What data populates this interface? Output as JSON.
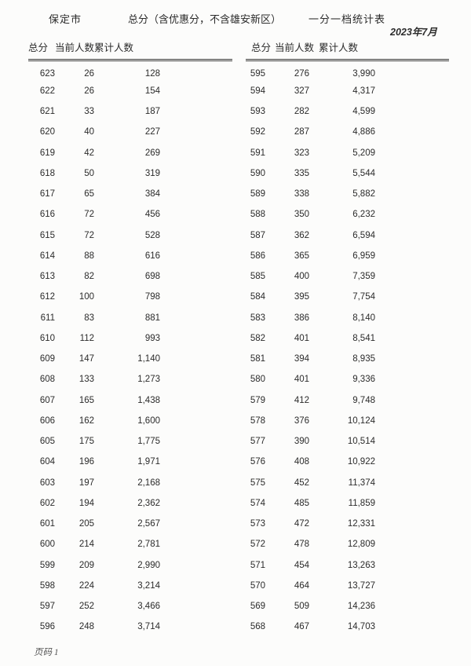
{
  "page": {
    "region": "保定市",
    "scope_note": "总分（含优惠分，不含雄安新区）",
    "table_title": "一分一档统计表",
    "date": "2023年7月",
    "page_label": "页码 1"
  },
  "columns": [
    "总分",
    "当前人数",
    "累计人数"
  ],
  "tables": {
    "left": {
      "rows": [
        [
          "623",
          "26",
          "128"
        ],
        [
          "622",
          "26",
          "154"
        ],
        [
          "621",
          "33",
          "187"
        ],
        [
          "620",
          "40",
          "227"
        ],
        [
          "619",
          "42",
          "269"
        ],
        [
          "618",
          "50",
          "319"
        ],
        [
          "617",
          "65",
          "384"
        ],
        [
          "616",
          "72",
          "456"
        ],
        [
          "615",
          "72",
          "528"
        ],
        [
          "614",
          "88",
          "616"
        ],
        [
          "613",
          "82",
          "698"
        ],
        [
          "612",
          "100",
          "798"
        ],
        [
          "611",
          "83",
          "881"
        ],
        [
          "610",
          "112",
          "993"
        ],
        [
          "609",
          "147",
          "1,140"
        ],
        [
          "608",
          "133",
          "1,273"
        ],
        [
          "607",
          "165",
          "1,438"
        ],
        [
          "606",
          "162",
          "1,600"
        ],
        [
          "605",
          "175",
          "1,775"
        ],
        [
          "604",
          "196",
          "1,971"
        ],
        [
          "603",
          "197",
          "2,168"
        ],
        [
          "602",
          "194",
          "2,362"
        ],
        [
          "601",
          "205",
          "2,567"
        ],
        [
          "600",
          "214",
          "2,781"
        ],
        [
          "599",
          "209",
          "2,990"
        ],
        [
          "598",
          "224",
          "3,214"
        ],
        [
          "597",
          "252",
          "3,466"
        ],
        [
          "596",
          "248",
          "3,714"
        ]
      ]
    },
    "right": {
      "rows": [
        [
          "595",
          "276",
          "3,990"
        ],
        [
          "594",
          "327",
          "4,317"
        ],
        [
          "593",
          "282",
          "4,599"
        ],
        [
          "592",
          "287",
          "4,886"
        ],
        [
          "591",
          "323",
          "5,209"
        ],
        [
          "590",
          "335",
          "5,544"
        ],
        [
          "589",
          "338",
          "5,882"
        ],
        [
          "588",
          "350",
          "6,232"
        ],
        [
          "587",
          "362",
          "6,594"
        ],
        [
          "586",
          "365",
          "6,959"
        ],
        [
          "585",
          "400",
          "7,359"
        ],
        [
          "584",
          "395",
          "7,754"
        ],
        [
          "583",
          "386",
          "8,140"
        ],
        [
          "582",
          "401",
          "8,541"
        ],
        [
          "581",
          "394",
          "8,935"
        ],
        [
          "580",
          "401",
          "9,336"
        ],
        [
          "579",
          "412",
          "9,748"
        ],
        [
          "578",
          "376",
          "10,124"
        ],
        [
          "577",
          "390",
          "10,514"
        ],
        [
          "576",
          "408",
          "10,922"
        ],
        [
          "575",
          "452",
          "11,374"
        ],
        [
          "574",
          "485",
          "11,859"
        ],
        [
          "573",
          "472",
          "12,331"
        ],
        [
          "572",
          "478",
          "12,809"
        ],
        [
          "571",
          "454",
          "13,263"
        ],
        [
          "570",
          "464",
          "13,727"
        ],
        [
          "569",
          "509",
          "14,236"
        ],
        [
          "568",
          "467",
          "14,703"
        ]
      ]
    }
  },
  "colors": {
    "text": "#2b2b2b",
    "rule": "#3a3a3a",
    "background": "#fcfcfb",
    "muted": "#555555"
  }
}
